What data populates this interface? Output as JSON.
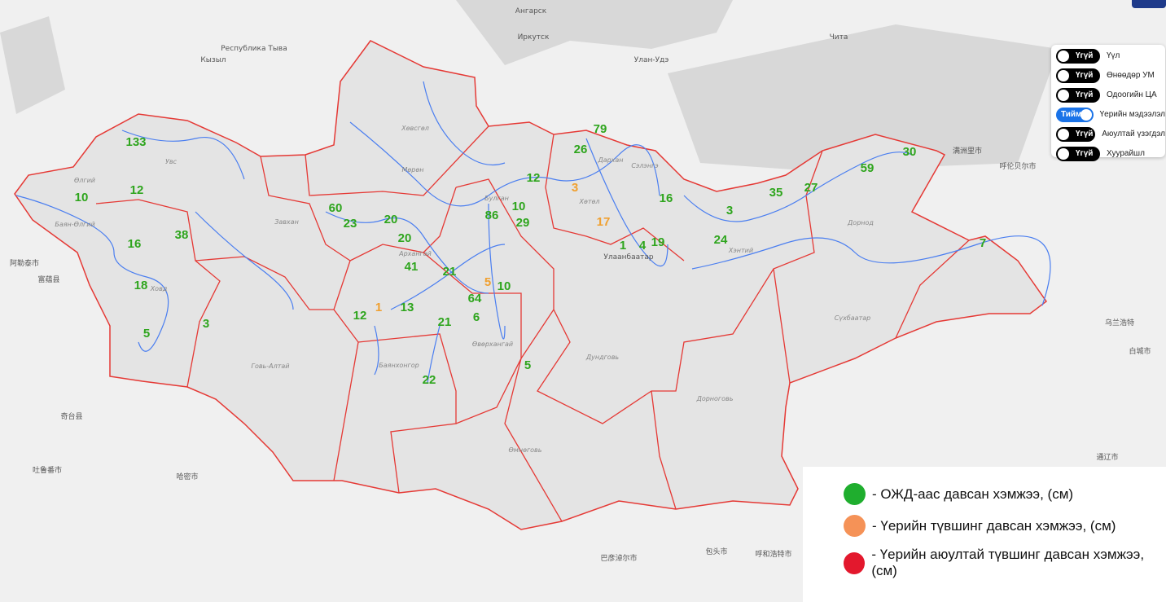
{
  "map": {
    "colors": {
      "green": "#2ea51d",
      "orange": "#f0a030",
      "red": "#e02030",
      "border": "#e53935",
      "river": "#4a7ef0"
    },
    "values": [
      {
        "v": "133",
        "c": "green"
      },
      {
        "v": "12",
        "c": "green"
      },
      {
        "v": "10",
        "c": "green"
      },
      {
        "v": "16",
        "c": "green"
      },
      {
        "v": "38",
        "c": "green"
      },
      {
        "v": "18",
        "c": "green"
      },
      {
        "v": "5",
        "c": "green"
      },
      {
        "v": "3",
        "c": "green"
      },
      {
        "v": "60",
        "c": "green"
      },
      {
        "v": "23",
        "c": "green"
      },
      {
        "v": "20",
        "c": "green"
      },
      {
        "v": "20",
        "c": "green"
      },
      {
        "v": "41",
        "c": "green"
      },
      {
        "v": "21",
        "c": "green"
      },
      {
        "v": "12",
        "c": "green"
      },
      {
        "v": "13",
        "c": "green"
      },
      {
        "v": "21",
        "c": "green"
      },
      {
        "v": "22",
        "c": "green"
      },
      {
        "v": "64",
        "c": "green"
      },
      {
        "v": "6",
        "c": "green"
      },
      {
        "v": "10",
        "c": "green"
      },
      {
        "v": "86",
        "c": "green"
      },
      {
        "v": "10",
        "c": "green"
      },
      {
        "v": "29",
        "c": "green"
      },
      {
        "v": "12",
        "c": "green"
      },
      {
        "v": "79",
        "c": "green"
      },
      {
        "v": "26",
        "c": "green"
      },
      {
        "v": "16",
        "c": "green"
      },
      {
        "v": "1",
        "c": "green"
      },
      {
        "v": "4",
        "c": "green"
      },
      {
        "v": "19",
        "c": "green"
      },
      {
        "v": "5",
        "c": "green"
      },
      {
        "v": "3",
        "c": "green"
      },
      {
        "v": "24",
        "c": "green"
      },
      {
        "v": "35",
        "c": "green"
      },
      {
        "v": "27",
        "c": "green"
      },
      {
        "v": "59",
        "c": "green"
      },
      {
        "v": "30",
        "c": "green"
      },
      {
        "v": "7",
        "c": "green"
      },
      {
        "v": "1",
        "c": "orange"
      },
      {
        "v": "3",
        "c": "orange"
      },
      {
        "v": "17",
        "c": "orange"
      },
      {
        "v": "5",
        "c": "orange"
      }
    ],
    "regions": [
      "Увс",
      "Өлгий",
      "Баян-Өлгий",
      "Ховд",
      "Завхан",
      "Хөвсгөл",
      "Мөрөн",
      "Архангай",
      "Булган",
      "Хөтөл",
      "Дархан",
      "Сэлэнгэ",
      "Улаанбаатар",
      "Хэнтий",
      "Дорнод",
      "Сүхбаатар",
      "Баянхонгор",
      "Өвөрхангай",
      "Дундговь",
      "Говь-Алтай",
      "Дорноговь",
      "Өмнөговь"
    ],
    "cities": [
      "Ангарск",
      "Иркутск",
      "Улан-Удэ",
      "Чита",
      "Кызыл",
      "Республика Тыва",
      "满洲里市",
      "呼伦贝尔市",
      "乌兰浩特",
      "白城市",
      "通辽市",
      "哈密市",
      "吐鲁番市",
      "包头市",
      "呼和浩特市",
      "巴彦淖尔市",
      "阿勒泰市",
      "富蕴县",
      "奇台县"
    ]
  },
  "layers": [
    {
      "state": "Үгүй",
      "label": "Үүл",
      "on": false
    },
    {
      "state": "Үгүй",
      "label": "Өнөөдөр УМ",
      "on": false
    },
    {
      "state": "Үгүй",
      "label": "Одоогийн ЦА",
      "on": false
    },
    {
      "state": "Тийм",
      "label": "Үерийн мэдээлэл",
      "on": true
    },
    {
      "state": "Үгүй",
      "label": "Аюултай үзэгдэл",
      "on": false
    },
    {
      "state": "Үгүй",
      "label": "Хуурайшл",
      "on": false
    }
  ],
  "legend": {
    "items": [
      {
        "color": "#1fae2e",
        "label": "- ОЖД-аас давсан хэмжээ, (см)"
      },
      {
        "color": "#f59257",
        "label": "- Үерийн түвшинг давсан хэмжээ, (см)"
      },
      {
        "color": "#e3182d",
        "label": "- Үерийн аюултай түвшинг давсан хэмжээ, (см)"
      }
    ]
  }
}
